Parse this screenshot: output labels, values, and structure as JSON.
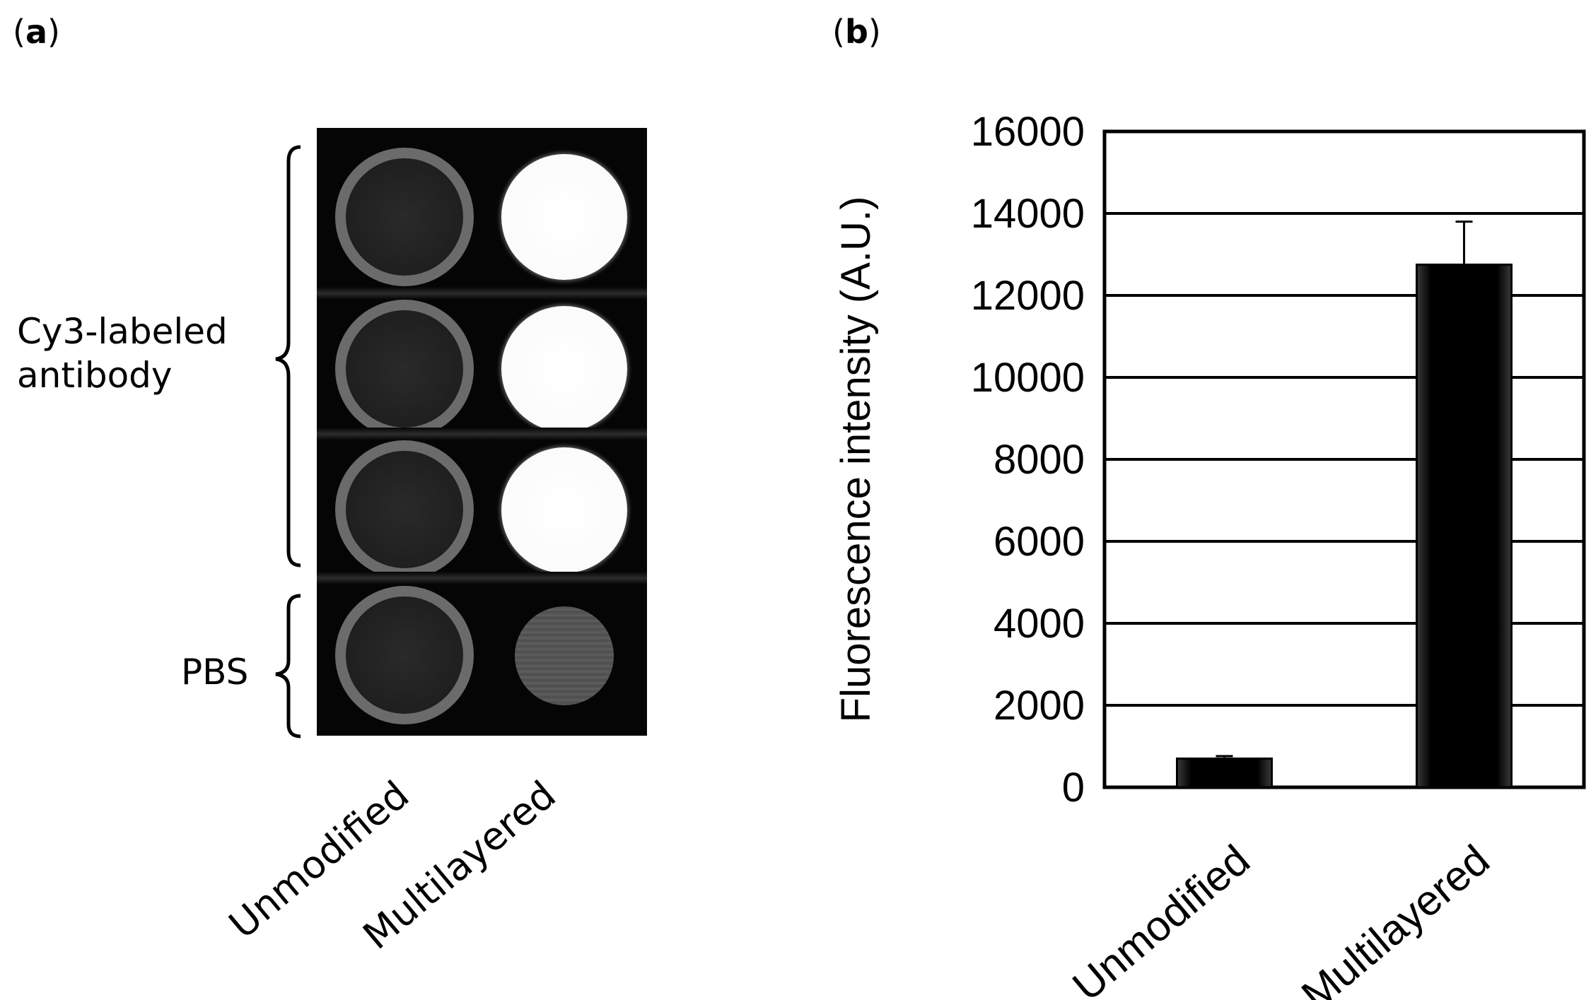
{
  "panel_a": {
    "label_prefix": "(",
    "label_letter": "a",
    "label_suffix": ")",
    "brace_top_label_line1": "Cy3-labeled",
    "brace_top_label_line2": "antibody",
    "brace_bottom_label": "PBS",
    "column_labels": [
      "Unmodified",
      "Multilayered"
    ]
  },
  "panel_b": {
    "label_prefix": "(",
    "label_letter": "b",
    "label_suffix": ")"
  },
  "chart_data": {
    "type": "bar",
    "categories": [
      "Unmodified",
      "Multilayered"
    ],
    "values": [
      700,
      12750
    ],
    "error": [
      60,
      1050
    ],
    "title": "",
    "xlabel": "",
    "ylabel": "Fluorescence intensity (A.U.)",
    "ylim": [
      0,
      16000
    ],
    "yticks": [
      0,
      2000,
      4000,
      6000,
      8000,
      10000,
      12000,
      14000,
      16000
    ],
    "grid": true,
    "bar_color": "#000000"
  }
}
